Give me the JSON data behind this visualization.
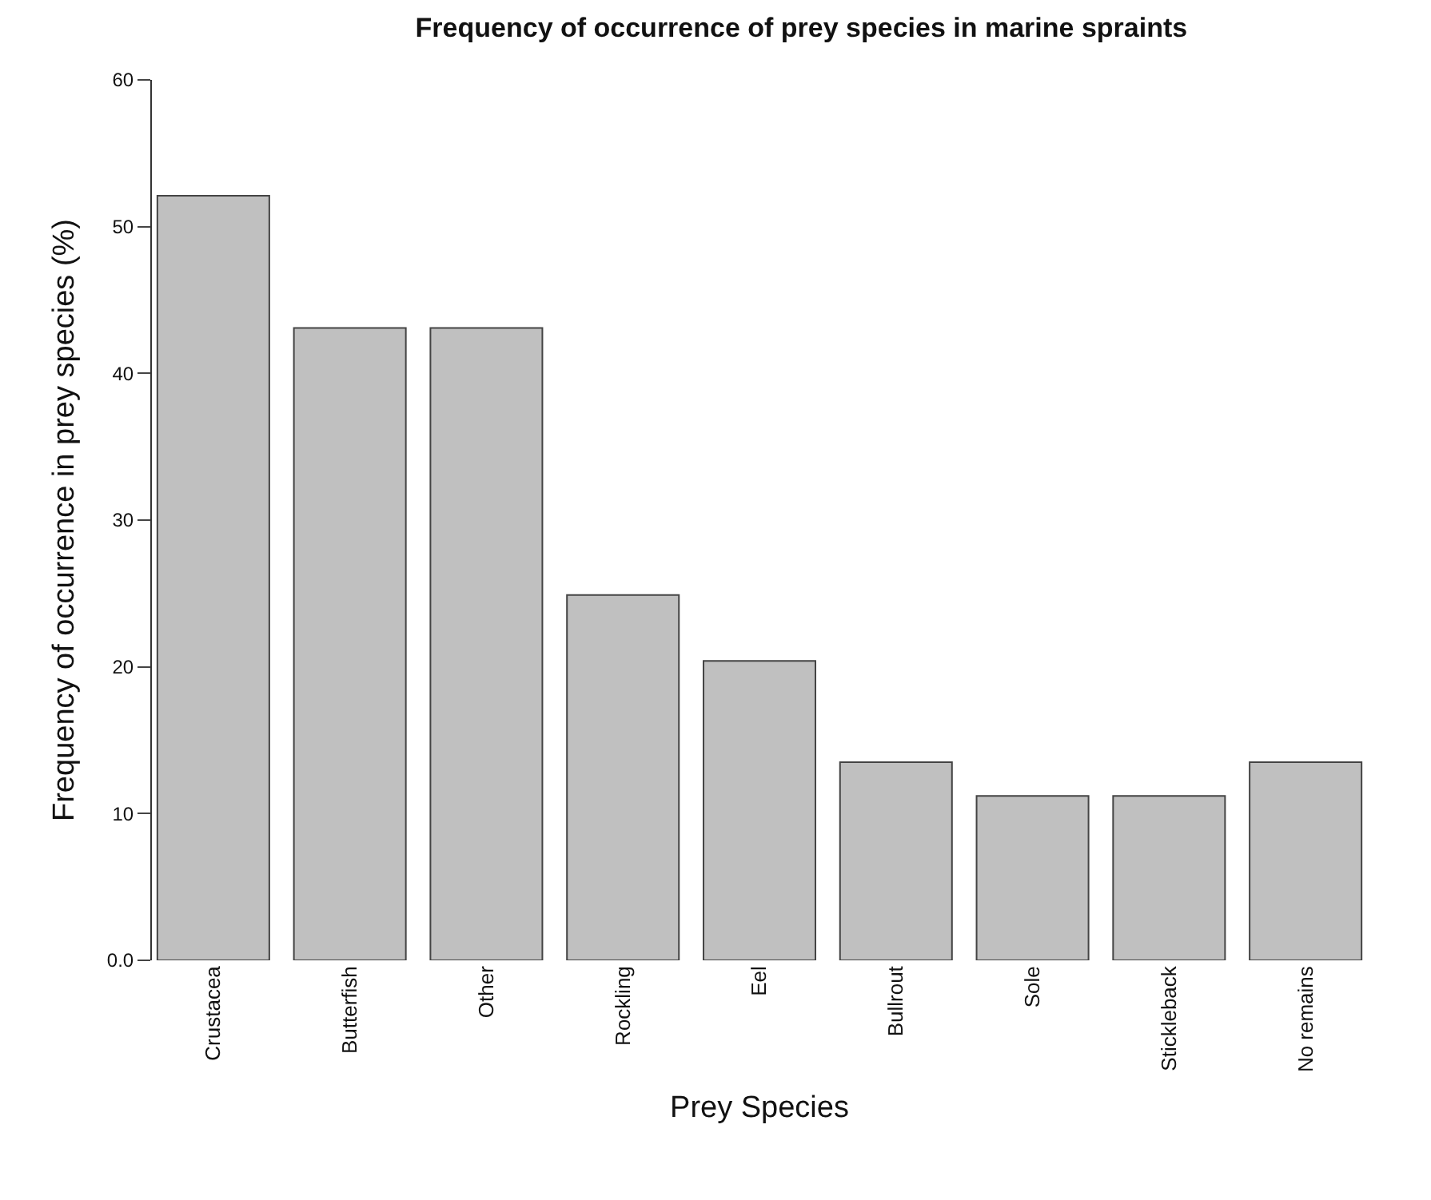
{
  "chart_data": {
    "type": "bar",
    "title": "Frequency of occurrence of prey species in marine spraints",
    "xlabel": "Prey Species",
    "ylabel": "Frequency of occurrence in prey species (%)",
    "categories": [
      "Crustacea",
      "Butterfish",
      "Other",
      "Rockling",
      "Eel",
      "Bullrout",
      "Sole",
      "Stickleback",
      "No remains"
    ],
    "values": [
      52.1,
      43.1,
      43.1,
      24.9,
      20.4,
      13.5,
      11.2,
      11.2,
      13.5
    ],
    "color": "#c0c0c0",
    "ylim": [
      0,
      60
    ],
    "yticks": [
      {
        "value": 0,
        "label": "0.0"
      },
      10,
      20,
      30,
      40,
      50,
      60
    ]
  }
}
